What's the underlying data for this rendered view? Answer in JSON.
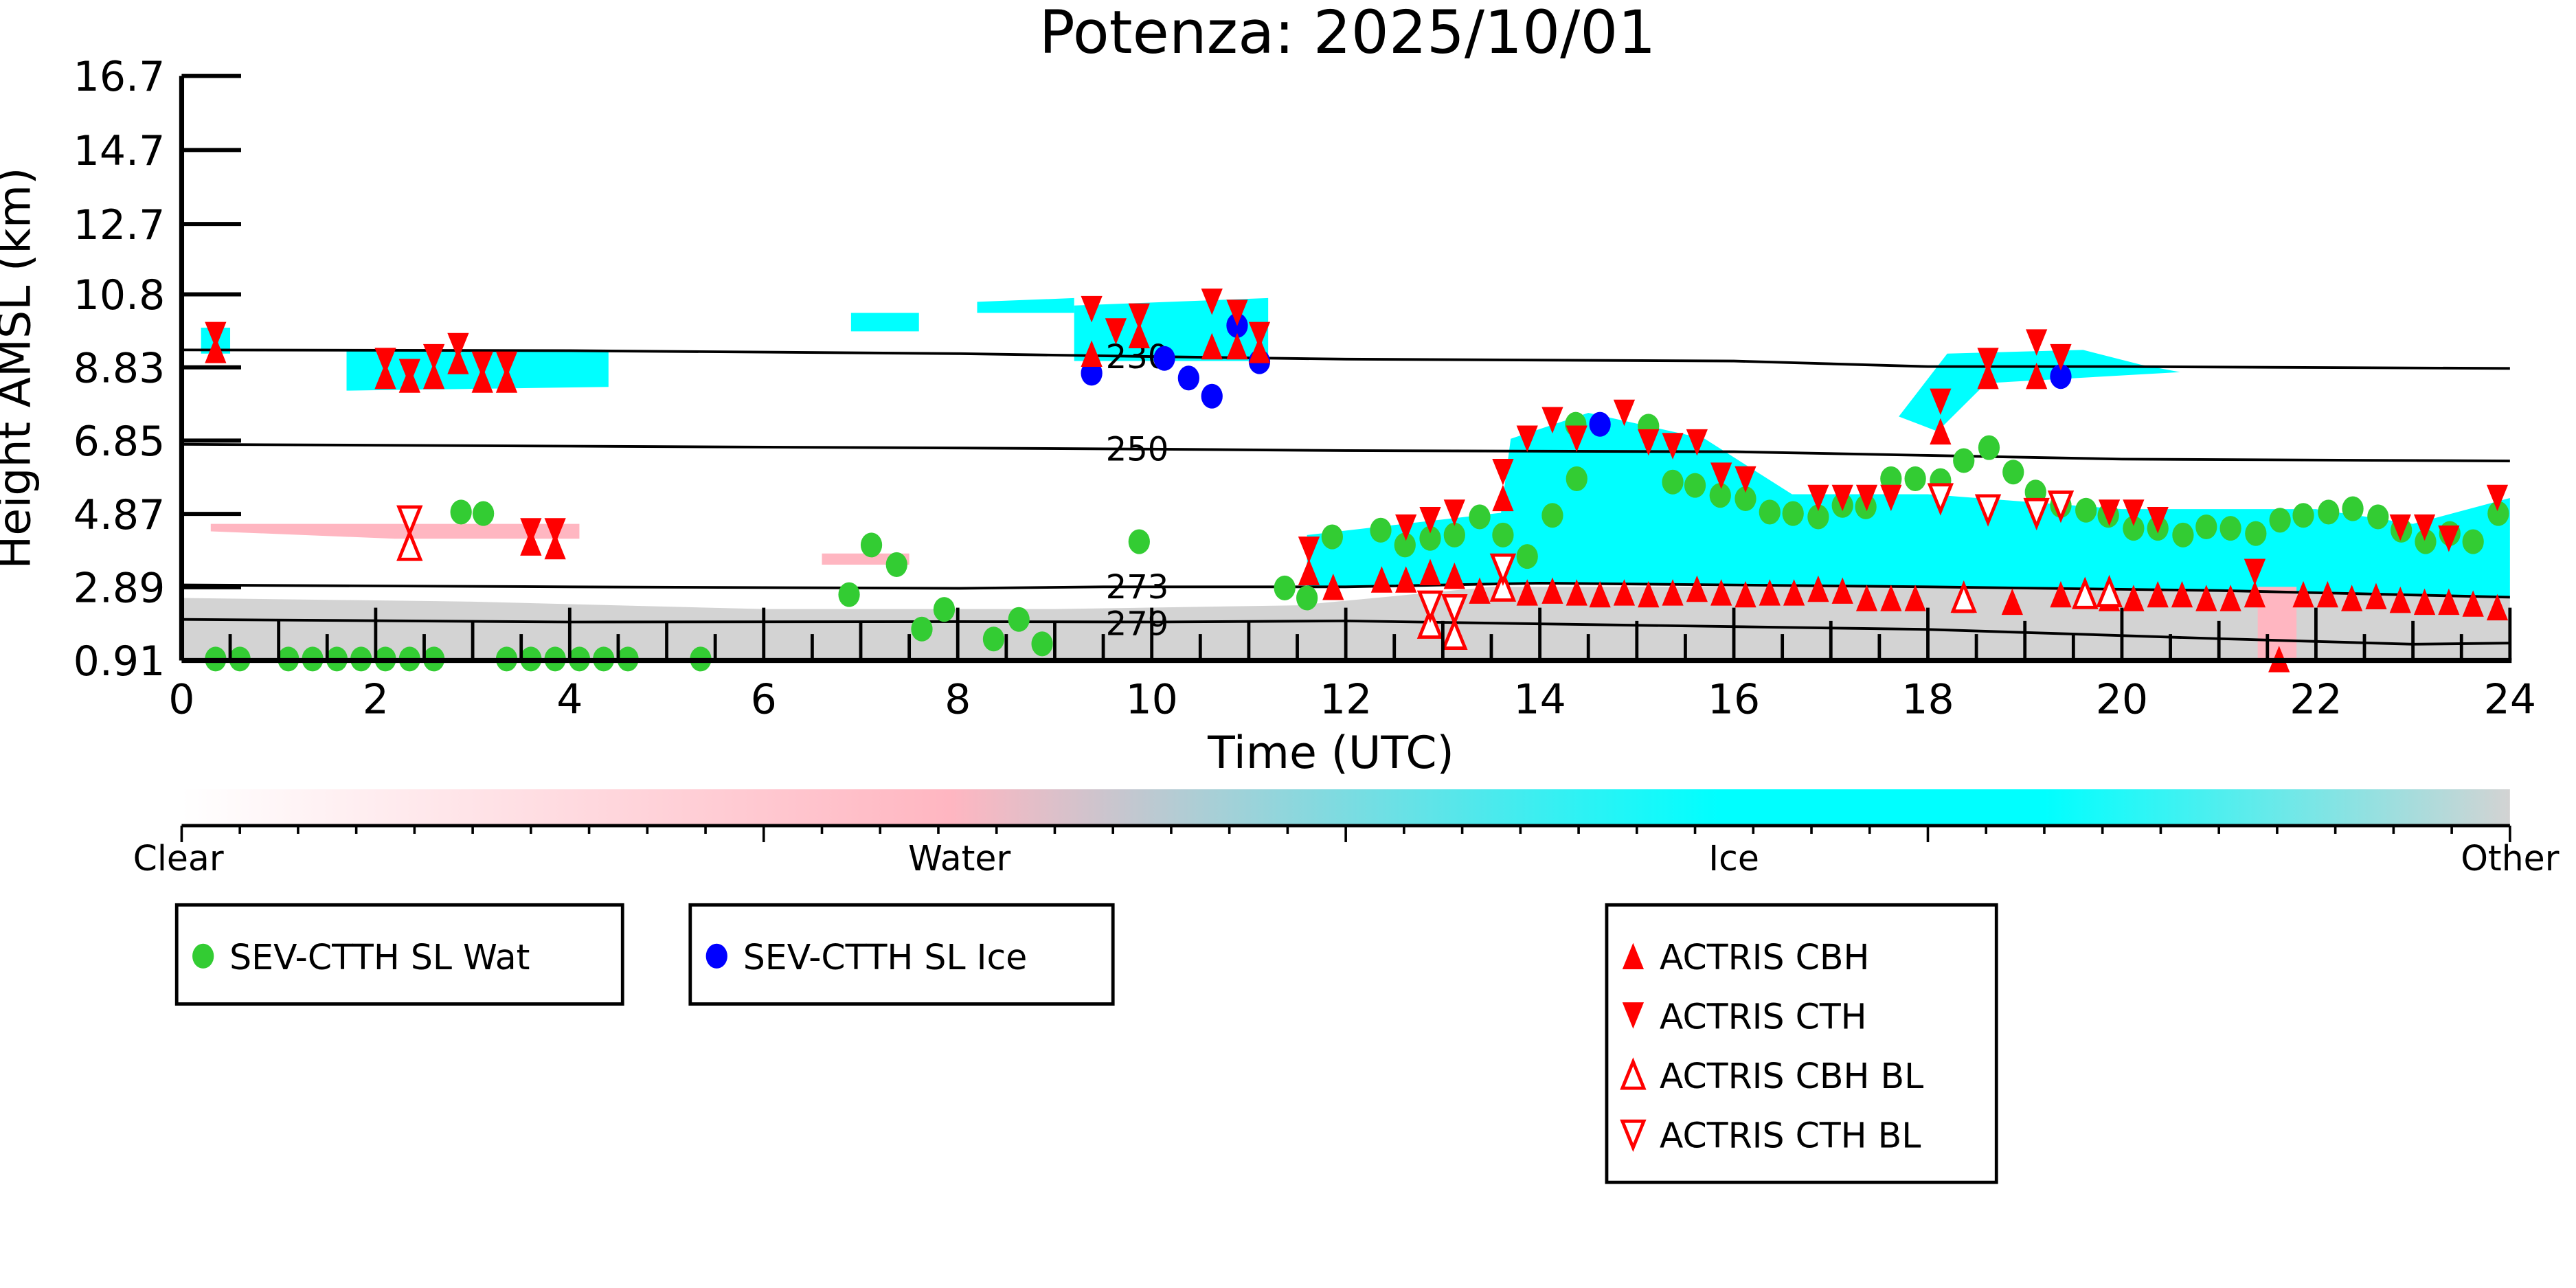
{
  "chart_data": {
    "type": "scatter",
    "title": "Potenza: 2025/10/01",
    "xlabel": "Time (UTC)",
    "ylabel": "Height AMSL (km)",
    "xlim": [
      0,
      24
    ],
    "ylim": [
      0.91,
      16.7
    ],
    "xticks": [
      "0",
      "2",
      "4",
      "6",
      "8",
      "10",
      "12",
      "14",
      "16",
      "18",
      "20",
      "22",
      "24"
    ],
    "yticks": [
      "0.91",
      "2.89",
      "4.87",
      "6.85",
      "8.83",
      "10.8",
      "12.7",
      "14.7",
      "16.7"
    ],
    "colorbar": {
      "labels": [
        "Clear",
        "Water",
        "Ice",
        "Other"
      ],
      "colors": [
        "#ffffff",
        "#ffb6c1",
        "#00ffff",
        "#d3d3d3"
      ]
    },
    "isotherms": [
      {
        "label": "230",
        "points": [
          [
            0,
            9.3
          ],
          [
            4,
            9.28
          ],
          [
            8,
            9.2
          ],
          [
            10,
            9.12
          ],
          [
            12,
            9.05
          ],
          [
            16,
            9.0
          ],
          [
            18,
            8.85
          ],
          [
            20,
            8.85
          ],
          [
            24,
            8.8
          ]
        ]
      },
      {
        "label": "250",
        "points": [
          [
            0,
            6.75
          ],
          [
            4,
            6.7
          ],
          [
            8,
            6.65
          ],
          [
            10,
            6.62
          ],
          [
            12,
            6.58
          ],
          [
            16,
            6.55
          ],
          [
            18,
            6.45
          ],
          [
            20,
            6.35
          ],
          [
            24,
            6.3
          ]
        ]
      },
      {
        "label": "273",
        "points": [
          [
            0,
            2.95
          ],
          [
            4,
            2.9
          ],
          [
            8,
            2.86
          ],
          [
            9.5,
            2.9
          ],
          [
            12,
            2.9
          ],
          [
            14,
            3.0
          ],
          [
            18,
            2.9
          ],
          [
            21,
            2.8
          ],
          [
            24,
            2.62
          ]
        ]
      },
      {
        "label": "279",
        "points": [
          [
            0,
            2.02
          ],
          [
            4,
            1.95
          ],
          [
            8,
            1.96
          ],
          [
            10,
            1.95
          ],
          [
            12,
            1.98
          ],
          [
            14,
            1.9
          ],
          [
            18,
            1.75
          ],
          [
            21,
            1.5
          ],
          [
            23,
            1.35
          ],
          [
            24,
            1.38
          ]
        ]
      }
    ],
    "series": [
      {
        "name": "SEV-CTTH SL Wat",
        "color": "#33cc33",
        "marker": "circle",
        "points": [
          [
            0.35,
            0.95
          ],
          [
            0.6,
            0.95
          ],
          [
            1.1,
            0.95
          ],
          [
            1.35,
            0.95
          ],
          [
            1.6,
            0.95
          ],
          [
            1.85,
            0.95
          ],
          [
            2.1,
            0.95
          ],
          [
            2.35,
            0.95
          ],
          [
            2.6,
            0.95
          ],
          [
            3.35,
            0.95
          ],
          [
            3.6,
            0.95
          ],
          [
            3.85,
            0.95
          ],
          [
            4.1,
            0.95
          ],
          [
            4.35,
            0.95
          ],
          [
            4.6,
            0.95
          ],
          [
            5.35,
            0.95
          ],
          [
            2.88,
            4.92
          ],
          [
            3.11,
            4.88
          ],
          [
            6.88,
            2.69
          ],
          [
            7.11,
            4.03
          ],
          [
            7.37,
            3.5
          ],
          [
            7.63,
            1.76
          ],
          [
            7.86,
            2.29
          ],
          [
            8.37,
            1.49
          ],
          [
            8.63,
            2.02
          ],
          [
            8.87,
            1.36
          ],
          [
            9.87,
            4.12
          ],
          [
            11.37,
            2.87
          ],
          [
            11.6,
            2.6
          ],
          [
            11.86,
            4.25
          ],
          [
            12.36,
            4.43
          ],
          [
            12.61,
            4.03
          ],
          [
            12.87,
            4.21
          ],
          [
            13.12,
            4.3
          ],
          [
            13.38,
            4.79
          ],
          [
            13.62,
            4.3
          ],
          [
            13.87,
            3.72
          ],
          [
            14.13,
            4.83
          ],
          [
            14.37,
            7.29
          ],
          [
            15.12,
            7.24
          ],
          [
            14.38,
            5.82
          ],
          [
            15.37,
            5.73
          ],
          [
            15.6,
            5.64
          ],
          [
            15.86,
            5.37
          ],
          [
            16.12,
            5.28
          ],
          [
            16.37,
            4.92
          ],
          [
            16.61,
            4.88
          ],
          [
            16.87,
            4.79
          ],
          [
            17.12,
            5.1
          ],
          [
            17.36,
            5.06
          ],
          [
            17.62,
            5.82
          ],
          [
            17.87,
            5.82
          ],
          [
            18.13,
            5.77
          ],
          [
            18.37,
            6.31
          ],
          [
            18.63,
            6.66
          ],
          [
            18.88,
            6.0
          ],
          [
            19.11,
            5.46
          ],
          [
            19.37,
            5.1
          ],
          [
            19.63,
            4.97
          ],
          [
            19.86,
            4.83
          ],
          [
            20.12,
            4.48
          ],
          [
            20.37,
            4.48
          ],
          [
            20.63,
            4.3
          ],
          [
            20.87,
            4.52
          ],
          [
            21.12,
            4.48
          ],
          [
            21.38,
            4.34
          ],
          [
            21.63,
            4.7
          ],
          [
            21.87,
            4.83
          ],
          [
            22.13,
            4.92
          ],
          [
            22.38,
            5.01
          ],
          [
            22.64,
            4.79
          ],
          [
            22.88,
            4.43
          ],
          [
            23.13,
            4.12
          ],
          [
            23.38,
            4.34
          ],
          [
            23.62,
            4.12
          ],
          [
            23.88,
            4.88
          ]
        ]
      },
      {
        "name": "SEV-CTTH SL Ice",
        "color": "#0000ff",
        "marker": "circle",
        "points": [
          [
            9.38,
            8.67
          ],
          [
            10.13,
            9.07
          ],
          [
            10.38,
            8.54
          ],
          [
            10.62,
            8.05
          ],
          [
            10.88,
            9.96
          ],
          [
            11.11,
            8.98
          ],
          [
            14.62,
            7.29
          ],
          [
            19.37,
            8.58
          ]
        ]
      },
      {
        "name": "ACTRIS CBH",
        "color": "#ff0000",
        "marker": "triangle-up",
        "points": [
          [
            0.35,
            9.3
          ],
          [
            2.1,
            8.6
          ],
          [
            2.35,
            8.5
          ],
          [
            2.6,
            8.6
          ],
          [
            2.85,
            9.0
          ],
          [
            3.1,
            8.5
          ],
          [
            3.35,
            8.5
          ],
          [
            3.6,
            4.1
          ],
          [
            3.85,
            4.0
          ],
          [
            9.38,
            9.2
          ],
          [
            9.87,
            9.7
          ],
          [
            10.62,
            9.4
          ],
          [
            10.88,
            9.4
          ],
          [
            11.11,
            9.3
          ],
          [
            11.62,
            3.3
          ],
          [
            11.87,
            2.9
          ],
          [
            12.37,
            3.1
          ],
          [
            12.62,
            3.1
          ],
          [
            12.87,
            3.3
          ],
          [
            13.12,
            3.2
          ],
          [
            13.38,
            2.8
          ],
          [
            13.62,
            5.3
          ],
          [
            13.87,
            2.75
          ],
          [
            14.13,
            2.8
          ],
          [
            14.38,
            2.75
          ],
          [
            14.62,
            2.7
          ],
          [
            14.87,
            2.75
          ],
          [
            15.12,
            2.7
          ],
          [
            15.37,
            2.75
          ],
          [
            15.62,
            2.85
          ],
          [
            15.87,
            2.75
          ],
          [
            16.12,
            2.7
          ],
          [
            16.37,
            2.75
          ],
          [
            16.62,
            2.75
          ],
          [
            16.87,
            2.85
          ],
          [
            17.12,
            2.8
          ],
          [
            17.37,
            2.6
          ],
          [
            17.62,
            2.6
          ],
          [
            17.87,
            2.6
          ],
          [
            18.13,
            7.1
          ],
          [
            18.37,
            2.55
          ],
          [
            18.62,
            8.6
          ],
          [
            18.87,
            2.5
          ],
          [
            19.12,
            8.6
          ],
          [
            19.37,
            2.7
          ],
          [
            19.62,
            2.7
          ],
          [
            19.87,
            2.6
          ],
          [
            20.12,
            2.6
          ],
          [
            20.37,
            2.7
          ],
          [
            20.62,
            2.7
          ],
          [
            20.87,
            2.6
          ],
          [
            21.12,
            2.6
          ],
          [
            21.37,
            2.7
          ],
          [
            21.62,
            0.95
          ],
          [
            21.87,
            2.7
          ],
          [
            22.12,
            2.7
          ],
          [
            22.37,
            2.6
          ],
          [
            22.62,
            2.65
          ],
          [
            22.87,
            2.55
          ],
          [
            23.12,
            2.5
          ],
          [
            23.37,
            2.5
          ],
          [
            23.62,
            2.45
          ],
          [
            23.87,
            2.35
          ]
        ]
      },
      {
        "name": "ACTRIS CTH",
        "color": "#ff0000",
        "marker": "triangle-down",
        "points": [
          [
            0.35,
            9.7
          ],
          [
            2.1,
            9.0
          ],
          [
            2.35,
            8.7
          ],
          [
            2.6,
            9.1
          ],
          [
            2.85,
            9.4
          ],
          [
            3.1,
            8.9
          ],
          [
            3.35,
            8.9
          ],
          [
            3.6,
            4.4
          ],
          [
            3.85,
            4.4
          ],
          [
            9.38,
            10.4
          ],
          [
            9.63,
            9.8
          ],
          [
            9.87,
            10.2
          ],
          [
            10.62,
            10.6
          ],
          [
            10.88,
            10.3
          ],
          [
            11.11,
            9.7
          ],
          [
            11.62,
            3.9
          ],
          [
            12.62,
            4.5
          ],
          [
            12.87,
            4.7
          ],
          [
            13.12,
            4.9
          ],
          [
            13.62,
            6.0
          ],
          [
            13.87,
            6.9
          ],
          [
            14.13,
            7.4
          ],
          [
            14.38,
            6.9
          ],
          [
            14.87,
            7.6
          ],
          [
            15.12,
            6.8
          ],
          [
            15.37,
            6.7
          ],
          [
            15.62,
            6.8
          ],
          [
            15.87,
            5.9
          ],
          [
            16.12,
            5.8
          ],
          [
            16.87,
            5.3
          ],
          [
            17.12,
            5.3
          ],
          [
            17.37,
            5.3
          ],
          [
            17.62,
            5.3
          ],
          [
            18.13,
            7.9
          ],
          [
            18.62,
            9.0
          ],
          [
            19.12,
            9.5
          ],
          [
            19.37,
            9.1
          ],
          [
            19.87,
            4.9
          ],
          [
            20.12,
            4.9
          ],
          [
            20.37,
            4.7
          ],
          [
            21.37,
            3.3
          ],
          [
            22.87,
            4.5
          ],
          [
            23.12,
            4.5
          ],
          [
            23.37,
            4.2
          ],
          [
            23.87,
            5.3
          ]
        ]
      },
      {
        "name": "ACTRIS CBH BL",
        "color": "#ff0000",
        "marker": "triangle-up-open",
        "points": [
          [
            2.35,
            4.0
          ],
          [
            12.87,
            1.9
          ],
          [
            13.12,
            1.6
          ],
          [
            13.62,
            2.9
          ],
          [
            18.37,
            2.6
          ],
          [
            19.62,
            2.7
          ],
          [
            19.87,
            2.75
          ]
        ]
      },
      {
        "name": "ACTRIS CTH BL",
        "color": "#ff0000",
        "marker": "triangle-down-open",
        "points": [
          [
            2.35,
            4.7
          ],
          [
            12.87,
            2.4
          ],
          [
            13.12,
            2.3
          ],
          [
            13.62,
            3.4
          ],
          [
            18.13,
            5.3
          ],
          [
            18.62,
            5.0
          ],
          [
            19.12,
            4.9
          ],
          [
            19.37,
            5.1
          ]
        ]
      }
    ]
  }
}
